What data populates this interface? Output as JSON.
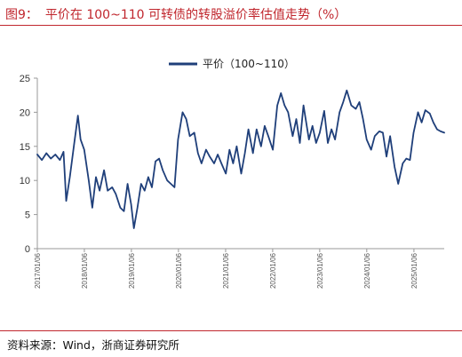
{
  "figure": {
    "number": "图9：",
    "title": "平价在 100~110 可转债的转股溢价率估值走势（%）",
    "source": "资料来源：Wind，浙商证券研究所"
  },
  "colors": {
    "accent": "#c0262d",
    "series": "#1f3f7a",
    "axis": "#999999"
  },
  "chart_data": {
    "type": "line",
    "title": "平价在 100~110 可转债的转股溢价率估值走势（%）",
    "xlabel": "",
    "ylabel": "",
    "ylim": [
      0,
      25
    ],
    "yticks": [
      0,
      5,
      10,
      15,
      20,
      25
    ],
    "xlim": [
      "2017-01-06",
      "2025-08-29"
    ],
    "xticks": [
      "2017/01/06",
      "2018/01/06",
      "2019/01/06",
      "2020/01/06",
      "2021/01/06",
      "2022/01/06",
      "2023/01/06",
      "2024/01/06",
      "2025/01/06"
    ],
    "grid": false,
    "legend": "top-center",
    "series": [
      {
        "name": "平价（100~110）",
        "x": [
          "2017-01-06",
          "2017-02-10",
          "2017-03-17",
          "2017-04-21",
          "2017-05-26",
          "2017-06-30",
          "2017-07-28",
          "2017-08-18",
          "2017-09-15",
          "2017-10-20",
          "2017-11-17",
          "2017-12-08",
          "2018-01-05",
          "2018-02-09",
          "2018-03-09",
          "2018-04-06",
          "2018-05-04",
          "2018-06-08",
          "2018-07-06",
          "2018-08-10",
          "2018-09-07",
          "2018-10-12",
          "2018-11-09",
          "2018-12-07",
          "2019-01-04",
          "2019-01-25",
          "2019-02-22",
          "2019-03-22",
          "2019-04-19",
          "2019-05-17",
          "2019-06-14",
          "2019-07-12",
          "2019-08-09",
          "2019-09-06",
          "2019-10-11",
          "2019-11-08",
          "2019-12-06",
          "2020-01-03",
          "2020-02-07",
          "2020-03-06",
          "2020-04-03",
          "2020-05-08",
          "2020-06-05",
          "2020-07-03",
          "2020-08-07",
          "2020-09-04",
          "2020-10-09",
          "2020-11-06",
          "2020-12-04",
          "2021-01-08",
          "2021-02-05",
          "2021-03-05",
          "2021-04-02",
          "2021-05-07",
          "2021-06-04",
          "2021-07-02",
          "2021-08-06",
          "2021-09-03",
          "2021-10-08",
          "2021-11-05",
          "2021-12-03",
          "2022-01-07",
          "2022-02-11",
          "2022-03-11",
          "2022-04-08",
          "2022-05-06",
          "2022-06-10",
          "2022-07-08",
          "2022-08-05",
          "2022-09-02",
          "2022-10-14",
          "2022-11-11",
          "2022-12-09",
          "2023-01-06",
          "2023-02-10",
          "2023-03-10",
          "2023-04-07",
          "2023-05-05",
          "2023-06-09",
          "2023-07-07",
          "2023-08-04",
          "2023-09-08",
          "2023-10-13",
          "2023-11-10",
          "2023-12-08",
          "2024-01-05",
          "2024-02-09",
          "2024-03-08",
          "2024-04-12",
          "2024-05-10",
          "2024-06-07",
          "2024-07-05",
          "2024-08-09",
          "2024-09-06",
          "2024-10-11",
          "2024-11-08",
          "2024-12-06",
          "2025-01-03",
          "2025-02-07",
          "2025-03-07",
          "2025-04-04",
          "2025-05-09",
          "2025-06-06",
          "2025-07-04",
          "2025-08-01",
          "2025-08-29"
        ],
        "values": [
          13.8,
          13.0,
          14.0,
          13.2,
          13.8,
          13.0,
          14.2,
          7.0,
          10.5,
          15.5,
          19.5,
          16.0,
          14.5,
          10.0,
          6.0,
          10.5,
          8.5,
          11.5,
          8.5,
          9.0,
          8.0,
          6.0,
          5.5,
          9.5,
          6.5,
          3.0,
          6.0,
          9.5,
          8.5,
          10.5,
          9.0,
          12.8,
          13.2,
          11.5,
          10.0,
          9.5,
          9.0,
          16.0,
          20.0,
          19.0,
          16.5,
          17.0,
          14.0,
          12.5,
          14.5,
          13.5,
          12.5,
          13.8,
          12.5,
          11.0,
          14.5,
          12.5,
          15.0,
          11.0,
          14.0,
          17.5,
          14.0,
          17.5,
          15.0,
          18.0,
          16.5,
          14.5,
          21.0,
          22.8,
          21.0,
          20.0,
          16.5,
          19.0,
          15.5,
          21.0,
          16.0,
          18.0,
          15.5,
          17.0,
          20.2,
          15.5,
          17.5,
          16.0,
          20.0,
          21.5,
          23.2,
          21.0,
          20.5,
          21.5,
          19.0,
          16.0,
          14.5,
          16.5,
          17.2,
          17.0,
          13.5,
          16.5,
          12.0,
          9.5,
          12.5,
          13.2,
          13.0,
          17.0,
          20.0,
          18.5,
          20.3,
          19.8,
          18.5,
          17.5,
          17.2,
          17.0
        ]
      }
    ]
  }
}
